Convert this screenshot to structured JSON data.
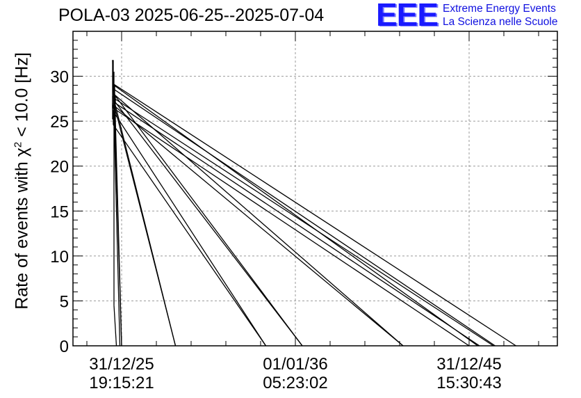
{
  "header": {
    "title": "POLA-03 2025-06-25--2025-07-04"
  },
  "logo": {
    "letters": "EEE",
    "line1": "Extreme Energy Events",
    "line2": "La Scienza nelle Scuole",
    "color": "#1a1aff"
  },
  "chart_data": {
    "type": "line",
    "title": "POLA-03 2025-06-25--2025-07-04",
    "ylabel_prefix": "Rate of events with χ",
    "ylabel_sup": "2",
    "ylabel_suffix": " < 10.0 [Hz]",
    "ylim": [
      0,
      35
    ],
    "yticks": [
      0,
      5,
      10,
      15,
      20,
      25,
      30
    ],
    "xticks": [
      {
        "date": "31/12/25",
        "time": "19:15:21"
      },
      {
        "date": "01/01/36",
        "time": "05:23:02"
      },
      {
        "date": "31/12/45",
        "time": "15:30:43"
      }
    ],
    "grid": true,
    "series_color": "#000000",
    "segments": [
      {
        "start": 29.2,
        "end_tick": 2.27
      },
      {
        "start": 28.6,
        "end_tick": 2.15
      },
      {
        "start": 29.0,
        "end_tick": 2.05
      },
      {
        "start": 27.5,
        "end_tick": 2.14
      },
      {
        "start": 27.0,
        "end_tick": 2.06
      },
      {
        "start": 26.5,
        "end_tick": 2.0
      },
      {
        "start": 26.8,
        "end_tick": 1.62
      },
      {
        "start": 28.0,
        "end_tick": 1.62
      },
      {
        "start": 27.2,
        "end_tick": 1.04
      },
      {
        "start": 27.8,
        "end_tick": 1.04
      },
      {
        "start": 26.2,
        "end_tick": 0.83
      },
      {
        "start": 24.6,
        "end_tick": 0.83
      },
      {
        "start": 27.4,
        "end_tick": 0.31
      },
      {
        "start": 26.6,
        "end_tick": 0.31
      },
      {
        "start": 25.2,
        "end_tick": 0.0
      },
      {
        "start": 31.8,
        "end_tick": -0.01
      },
      {
        "start": 30.5,
        "end_tick": 0.0
      },
      {
        "start": 4.5,
        "end_tick": -0.03
      }
    ]
  }
}
